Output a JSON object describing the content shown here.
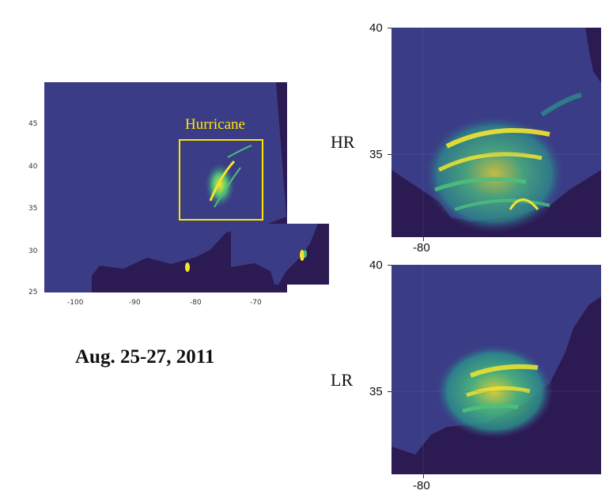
{
  "overview": {
    "annotation": "Hurricane",
    "date_caption": "Aug. 25-27, 2011",
    "x_ticks": [
      "-100",
      "-90",
      "-80",
      "-70"
    ],
    "y_ticks": [
      "45",
      "40",
      "35",
      "30",
      "25"
    ]
  },
  "hr_panel": {
    "label": "HR",
    "y_ticks": [
      "40",
      "35"
    ],
    "x_ticks": [
      "-80"
    ]
  },
  "lr_panel": {
    "label": "LR",
    "y_ticks": [
      "40",
      "35"
    ],
    "x_ticks": [
      "-80"
    ]
  },
  "colors": {
    "ocean": "#3a3c86",
    "land": "#2c1a52",
    "box": "#ffe600",
    "rain_low": "#2b8c8c",
    "rain_mid": "#4cc07a",
    "rain_high": "#f2e52e"
  }
}
